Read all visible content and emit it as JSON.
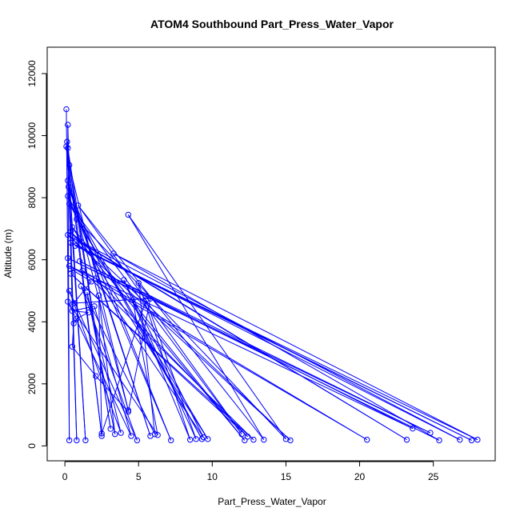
{
  "chart_data": {
    "type": "line",
    "title": "ATOM4 Southbound Part_Press_Water_Vapor",
    "xlabel": "Part_Press_Water_Vapor",
    "ylabel": "Altitude (m)",
    "xlim": [
      -1.2,
      29.2
    ],
    "ylim": [
      -480,
      12850
    ],
    "x_ticks": [
      0,
      5,
      10,
      15,
      20,
      25
    ],
    "y_ticks": [
      0,
      2000,
      4000,
      6000,
      8000,
      10000,
      12000
    ],
    "grid": false,
    "legend": "none",
    "series": [
      {
        "color": "#0000ff",
        "marker": "open-circle",
        "points": [
          [
            0.1,
            10850
          ],
          [
            0.3,
            180
          ],
          [
            0.2,
            10350
          ],
          [
            0.8,
            180
          ],
          [
            0.15,
            9800
          ],
          [
            1.4,
            180
          ],
          [
            0.1,
            9650
          ],
          [
            2.5,
            320
          ],
          [
            0.2,
            9600
          ],
          [
            3.1,
            550
          ],
          [
            0.3,
            9050
          ],
          [
            4.3,
            1150
          ],
          [
            0.2,
            8550
          ],
          [
            5.8,
            320
          ],
          [
            0.25,
            8350
          ],
          [
            7.2,
            180
          ],
          [
            0.2,
            8050
          ],
          [
            9.3,
            220
          ],
          [
            0.3,
            7800
          ],
          [
            12.0,
            380
          ],
          [
            0.9,
            7750
          ],
          [
            13.5,
            200
          ],
          [
            4.3,
            7450
          ],
          [
            15.0,
            220
          ],
          [
            0.8,
            7300
          ],
          [
            9.7,
            220
          ],
          [
            0.5,
            7050
          ],
          [
            12.2,
            180
          ],
          [
            0.4,
            6900
          ],
          [
            15.3,
            180
          ],
          [
            0.2,
            6800
          ],
          [
            23.2,
            200
          ],
          [
            0.8,
            6650
          ],
          [
            26.8,
            200
          ],
          [
            0.4,
            6550
          ],
          [
            27.6,
            180
          ],
          [
            0.7,
            6450
          ],
          [
            28.0,
            200
          ],
          [
            3.3,
            6200
          ],
          [
            25.4,
            180
          ],
          [
            0.2,
            6050
          ],
          [
            24.8,
            420
          ],
          [
            1.0,
            5950
          ],
          [
            23.6,
            560
          ],
          [
            0.3,
            5800
          ],
          [
            20.5,
            200
          ],
          [
            1.2,
            5650
          ],
          [
            12.8,
            200
          ],
          [
            0.4,
            5550
          ],
          [
            12.4,
            300
          ],
          [
            2.1,
            5400
          ],
          [
            9.4,
            280
          ],
          [
            4.0,
            5350
          ],
          [
            8.5,
            200
          ],
          [
            5.0,
            5250
          ],
          [
            6.1,
            380
          ],
          [
            1.1,
            5150
          ],
          [
            4.9,
            180
          ],
          [
            0.3,
            5000
          ],
          [
            3.8,
            420
          ],
          [
            1.5,
            4950
          ],
          [
            3.4,
            380
          ],
          [
            2.3,
            4850
          ],
          [
            2.5,
            400
          ],
          [
            5.5,
            4700
          ],
          [
            8.9,
            220
          ],
          [
            4.6,
            4700
          ],
          [
            6.3,
            350
          ],
          [
            0.2,
            4650
          ],
          [
            4.5,
            320
          ],
          [
            2.0,
            4500
          ],
          [
            0.5,
            4350
          ],
          [
            1.6,
            4300
          ],
          [
            0.8,
            4100
          ],
          [
            0.6,
            3950
          ],
          [
            0.5,
            3200
          ],
          [
            2.1,
            2250
          ],
          [
            4.3,
            1100
          ],
          [
            5.8,
            4750
          ],
          [
            0.6,
            4600
          ],
          [
            1.8,
            5300
          ],
          [
            0.4,
            5700
          ]
        ]
      }
    ]
  }
}
